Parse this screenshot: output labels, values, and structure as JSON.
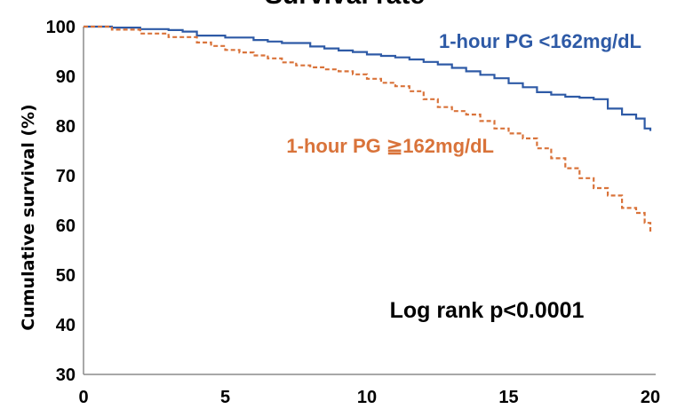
{
  "chart_data": {
    "type": "line",
    "title": "Survival rate",
    "ylabel": "Cumulative survival (%)",
    "xlabel": "",
    "xlim": [
      0,
      20
    ],
    "ylim": [
      30,
      100
    ],
    "xticks": [
      0,
      5,
      10,
      15,
      20
    ],
    "yticks": [
      30,
      40,
      50,
      60,
      70,
      80,
      90,
      100
    ],
    "grid": false,
    "annotation": "Log rank p<0.0001",
    "series": [
      {
        "name": "1-hour PG <162mg/dL",
        "color": "#2e5aa6",
        "style": "solid",
        "x": [
          0,
          1,
          2,
          3,
          3.5,
          4,
          5,
          6,
          6.5,
          7,
          8,
          8.5,
          9,
          9.5,
          10,
          10.5,
          11,
          11.5,
          12,
          12.5,
          13,
          13.5,
          14,
          14.5,
          15,
          15.5,
          16,
          16.5,
          17,
          17.5,
          18,
          18.5,
          19,
          19.5,
          19.8,
          20
        ],
        "y": [
          100,
          99.8,
          99.5,
          99.3,
          99,
          98.2,
          97.8,
          97.3,
          97,
          96.7,
          96,
          95.6,
          95.2,
          94.9,
          94.4,
          94.1,
          93.8,
          93.4,
          92.9,
          92.4,
          91.7,
          91,
          90.3,
          89.6,
          88.6,
          87.8,
          86.8,
          86.3,
          85.9,
          85.7,
          85.4,
          83.5,
          82.3,
          81.5,
          79.5,
          79
        ]
      },
      {
        "name": "1-hour PG ≧162mg/dL",
        "color": "#d9733a",
        "style": "dashed",
        "x": [
          0,
          1,
          2,
          3,
          4,
          4.5,
          5,
          5.5,
          6,
          6.5,
          7,
          7.5,
          8,
          8.5,
          9,
          9.5,
          10,
          10.5,
          11,
          11.5,
          12,
          12.5,
          13,
          13.5,
          14,
          14.5,
          15,
          15.5,
          16,
          16.5,
          17,
          17.5,
          18,
          18.5,
          19,
          19.5,
          19.8,
          20
        ],
        "y": [
          100,
          99.4,
          98.6,
          97.9,
          96.8,
          96.1,
          95.3,
          94.8,
          94.2,
          93.6,
          92.8,
          92.2,
          91.8,
          91.4,
          91,
          90.4,
          89.5,
          88.7,
          88,
          87,
          85.4,
          83.8,
          83,
          82.3,
          81,
          79.5,
          78.5,
          77.5,
          75.5,
          73.5,
          71.5,
          69.5,
          67.5,
          66,
          63.5,
          62.5,
          60.5,
          58.5
        ]
      }
    ]
  }
}
